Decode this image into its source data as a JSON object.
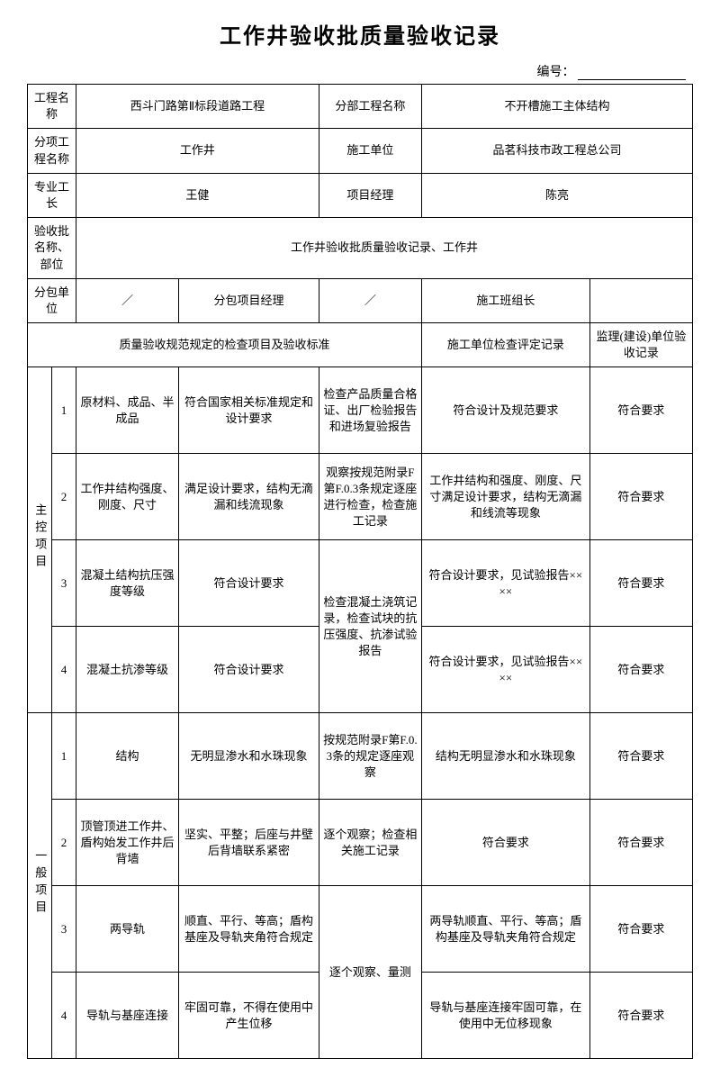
{
  "title": "工作井验收批质量验收记录",
  "serial_label": "编号：",
  "header": {
    "project_name_label": "工程名称",
    "project_name": "西斗门路第Ⅱ标段道路工程",
    "division_label": "分部工程名称",
    "division_value": "不开槽施工主体结构",
    "subitem_label": "分项工程名称",
    "subitem_value": "工作井",
    "construction_unit_label": "施工单位",
    "construction_unit_value": "品茗科技市政工程总公司",
    "foreman_label": "专业工长",
    "foreman_value": "王健",
    "pm_label": "项目经理",
    "pm_value": "陈亮",
    "batch_label": "验收批名称、部位",
    "batch_value": "工作井验收批质量验收记录、工作井",
    "subcontractor_label": "分包单位",
    "subcontractor_value": "／",
    "sub_pm_label": "分包项目经理",
    "sub_pm_value": "／",
    "team_leader_label": "施工班组长",
    "team_leader_value": ""
  },
  "col_headers": {
    "standard": "质量验收规范规定的检查项目及验收标准",
    "inspection": "施工单位检查评定记录",
    "supervisor": "监理(建设)单位验收记录"
  },
  "section_main_label": "主控项目",
  "section_general_label": "一般项目",
  "main_items": [
    {
      "num": "1",
      "item": "原材料、成品、半成品",
      "standard": "符合国家相关标准规定和设计要求",
      "method": "检查产品质量合格证、出厂检验报告和进场复验报告",
      "inspection": "符合设计及规范要求",
      "supervisor": "符合要求"
    },
    {
      "num": "2",
      "item": "工作井结构强度、刚度、尺寸",
      "standard": "满足设计要求，结构无滴漏和线流现象",
      "method": "观察按规范附录F第F.0.3条规定逐座进行检查，检查施工记录",
      "inspection": "工作井结构和强度、刚度、尺寸满足设计要求，结构无滴漏和线流等现象",
      "supervisor": "符合要求"
    },
    {
      "num": "3",
      "item": "混凝土结构抗压强度等级",
      "standard": "符合设计要求",
      "inspection": "符合设计要求，见试验报告××××",
      "supervisor": "符合要求"
    },
    {
      "num": "4",
      "item": "混凝土抗渗等级",
      "standard": "符合设计要求",
      "inspection": "符合设计要求，见试验报告××××",
      "supervisor": "符合要求"
    }
  ],
  "main_merged_method_34": "检查混凝土浇筑记录，检查试块的抗压强度、抗渗试验报告",
  "general_items": [
    {
      "num": "1",
      "item": "结构",
      "standard": "无明显渗水和水珠现象",
      "method": "按规范附录F第F.0.3条的规定逐座观察",
      "inspection": "结构无明显渗水和水珠现象",
      "supervisor": "符合要求"
    },
    {
      "num": "2",
      "item": "顶管顶进工作井、盾构始发工作井后背墙",
      "standard": "坚实、平整；后座与井壁后背墙联系紧密",
      "method": "逐个观察；检查相关施工记录",
      "inspection": "符合要求",
      "supervisor": "符合要求"
    },
    {
      "num": "3",
      "item": "两导轨",
      "standard": "顺直、平行、等高；盾构基座及导轨夹角符合规定",
      "inspection": "两导轨顺直、平行、等高；盾构基座及导轨夹角符合规定",
      "supervisor": "符合要求"
    },
    {
      "num": "4",
      "item": "导轨与基座连接",
      "standard": "牢固可靠，不得在使用中产生位移",
      "inspection": "导轨与基座连接牢固可靠，在使用中无位移现象",
      "supervisor": "符合要求"
    }
  ],
  "general_merged_method_34": "逐个观察、量测"
}
